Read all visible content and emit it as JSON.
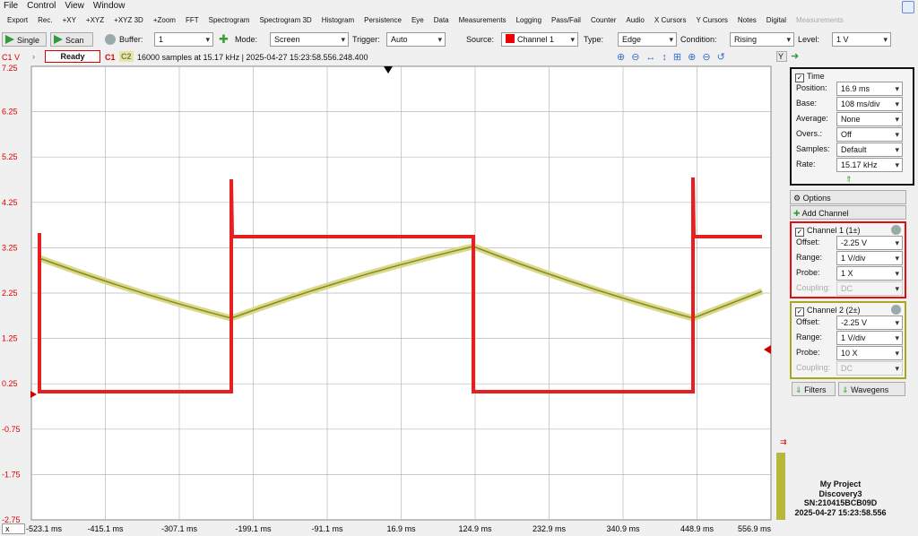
{
  "menu": [
    "File",
    "Control",
    "View",
    "Window"
  ],
  "toolbar": [
    "Export",
    "Rec.",
    "+XY",
    "+XYZ",
    "+XYZ 3D",
    "+Zoom",
    "FFT",
    "Spectrogram",
    "Spectrogram 3D",
    "Histogram",
    "Persistence",
    "Eye",
    "Data",
    "Measurements",
    "Logging",
    "Pass/Fail",
    "Counter",
    "Audio",
    "X Cursors",
    "Y Cursors",
    "Notes",
    "Digital",
    "Measurements"
  ],
  "controls": {
    "single": "Single",
    "scan": "Scan",
    "buffer_label": "Buffer:",
    "buffer": "1",
    "mode_label": "Mode:",
    "mode": "Screen",
    "trigger_label": "Trigger:",
    "trigger": "Auto",
    "source_label": "Source:",
    "source": "Channel 1",
    "type_label": "Type:",
    "type": "Edge",
    "condition_label": "Condition:",
    "condition": "Rising",
    "level_label": "Level:",
    "level": "1 V"
  },
  "status": {
    "unit": "C1 V",
    "state": "Ready",
    "c1": "C1",
    "c2": "C2",
    "info": "16000 samples at 15.17 kHz  | 2025-04-27 15:23:58.556.248.400"
  },
  "plot": {
    "y_labels": [
      "7.25",
      "6.25",
      "5.25",
      "4.25",
      "3.25",
      "2.25",
      "1.25",
      "0.25",
      "-0.75",
      "-1.75",
      "-2.75"
    ],
    "x_labels": [
      "-523.1 ms",
      "-415.1 ms",
      "-307.1 ms",
      "-199.1 ms",
      "-91.1 ms",
      "16.9 ms",
      "124.9 ms",
      "232.9 ms",
      "340.9 ms",
      "448.9 ms",
      "556.9 ms"
    ],
    "x_selector": "x",
    "y_button": "Y"
  },
  "panel": {
    "time": {
      "title": "Time",
      "rows": [
        {
          "label": "Position:",
          "value": "16.9 ms"
        },
        {
          "label": "Base:",
          "value": "108 ms/div"
        },
        {
          "label": "Average:",
          "value": "None"
        },
        {
          "label": "Overs.:",
          "value": "Off"
        },
        {
          "label": "Samples:",
          "value": "Default"
        },
        {
          "label": "Rate:",
          "value": "15.17 kHz"
        }
      ]
    },
    "options": "Options",
    "add_channel": "Add Channel",
    "channels": [
      {
        "title": "Channel 1 (1±)",
        "rows": [
          {
            "label": "Offset:",
            "value": "-2.25 V"
          },
          {
            "label": "Range:",
            "value": "1 V/div"
          },
          {
            "label": "Probe:",
            "value": "1 X"
          },
          {
            "label": "Coupling:",
            "value": "DC"
          }
        ]
      },
      {
        "title": "Channel 2 (2±)",
        "rows": [
          {
            "label": "Offset:",
            "value": "-2.25 V"
          },
          {
            "label": "Range:",
            "value": "1 V/div"
          },
          {
            "label": "Probe:",
            "value": "10 X"
          },
          {
            "label": "Coupling:",
            "value": "DC"
          }
        ]
      }
    ],
    "filters": "Filters",
    "wavegens": "Wavegens",
    "device": [
      "My Project",
      "Discovery3",
      "SN:210415BCB09D",
      "2025-04-27 15:23:58.556"
    ]
  }
}
